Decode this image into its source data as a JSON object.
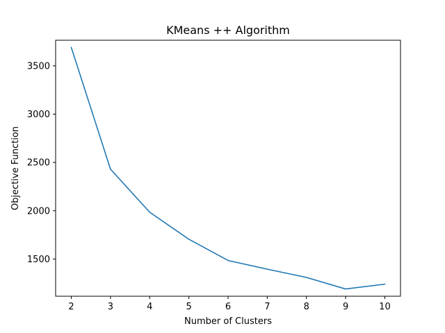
{
  "chart_data": {
    "type": "line",
    "title": "KMeans ++ Algorithm",
    "xlabel": "Number of Clusters",
    "ylabel": "Objective Function",
    "x": [
      2,
      3,
      4,
      5,
      6,
      7,
      8,
      9,
      10
    ],
    "series": [
      {
        "values": [
          3690,
          2430,
          1985,
          1705,
          1485,
          1395,
          1310,
          1190,
          1240
        ],
        "color": "#1f77b4"
      }
    ],
    "xlim": [
      1.6,
      10.4
    ],
    "ylim": [
      1115,
      3765
    ],
    "xticks": [
      2,
      3,
      4,
      5,
      6,
      7,
      8,
      9,
      10
    ],
    "yticks": [
      1500,
      2000,
      2500,
      3000,
      3500
    ],
    "grid": false,
    "legend": "none"
  }
}
